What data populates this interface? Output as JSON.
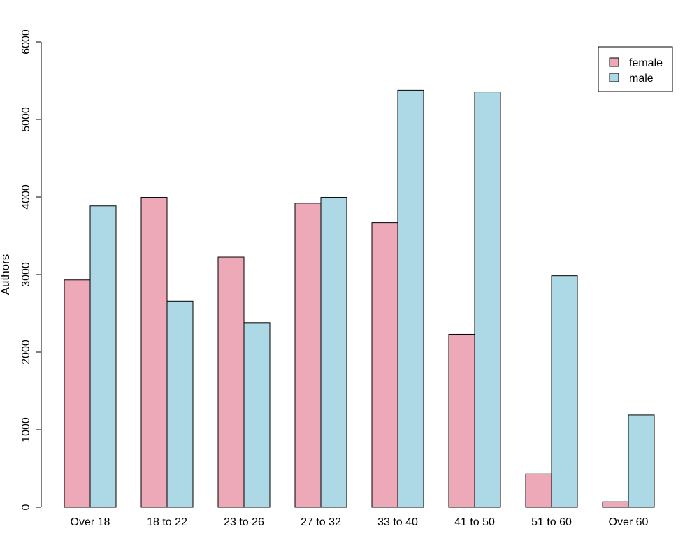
{
  "chart_data": {
    "type": "bar",
    "categories": [
      "Over 18",
      "18 to 22",
      "23 to 26",
      "27 to 32",
      "33 to 40",
      "41 to 50",
      "51 to 60",
      "Over 60"
    ],
    "series": [
      {
        "name": "female",
        "color": "#EEA9B8",
        "values": [
          2930,
          3995,
          3225,
          3920,
          3670,
          2230,
          430,
          70
        ]
      },
      {
        "name": "male",
        "color": "#ADD8E6",
        "values": [
          3885,
          2655,
          2380,
          3995,
          5375,
          5355,
          2985,
          1190
        ]
      }
    ],
    "ylabel": "Authors",
    "xlabel": "",
    "title": "",
    "ylim": [
      0,
      6000
    ],
    "yticks": [
      0,
      1000,
      2000,
      3000,
      4000,
      5000,
      6000
    ],
    "legend": {
      "position": "top-right",
      "boxed": true
    },
    "grid": false
  }
}
